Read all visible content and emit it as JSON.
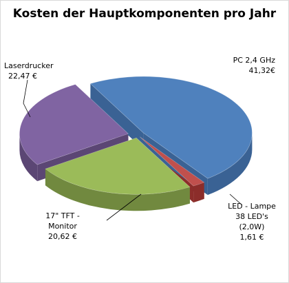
{
  "chart_data": {
    "type": "pie",
    "title": "Kosten der Hauptkomponenten pro Jahr",
    "unit": "€",
    "slices": [
      {
        "name": "PC 2,4 GHz",
        "label_lines": [
          "PC 2,4 GHz"
        ],
        "value_text": "41,32€",
        "value": 41.32,
        "color": "#4f81bd",
        "side": "#3a6294"
      },
      {
        "name": "LED - Lampe 38 LED's (2,0W)",
        "label_lines": [
          "LED - Lampe",
          "38 LED's",
          "(2,0W)"
        ],
        "value_text": "1,61 €",
        "value": 1.61,
        "color": "#c0504d",
        "side": "#8c2d2a"
      },
      {
        "name": "17\" TFT - Monitor",
        "label_lines": [
          "17\" TFT -",
          "Monitor"
        ],
        "value_text": "20,62 €",
        "value": 20.62,
        "color": "#9bbb59",
        "side": "#71893f"
      },
      {
        "name": "Laserdrucker",
        "label_lines": [
          "Laserdrucker"
        ],
        "value_text": "22,47 €",
        "value": 22.47,
        "color": "#8064a2",
        "side": "#5b4674"
      }
    ],
    "exploded": true,
    "three_d": true,
    "legend": "none"
  }
}
